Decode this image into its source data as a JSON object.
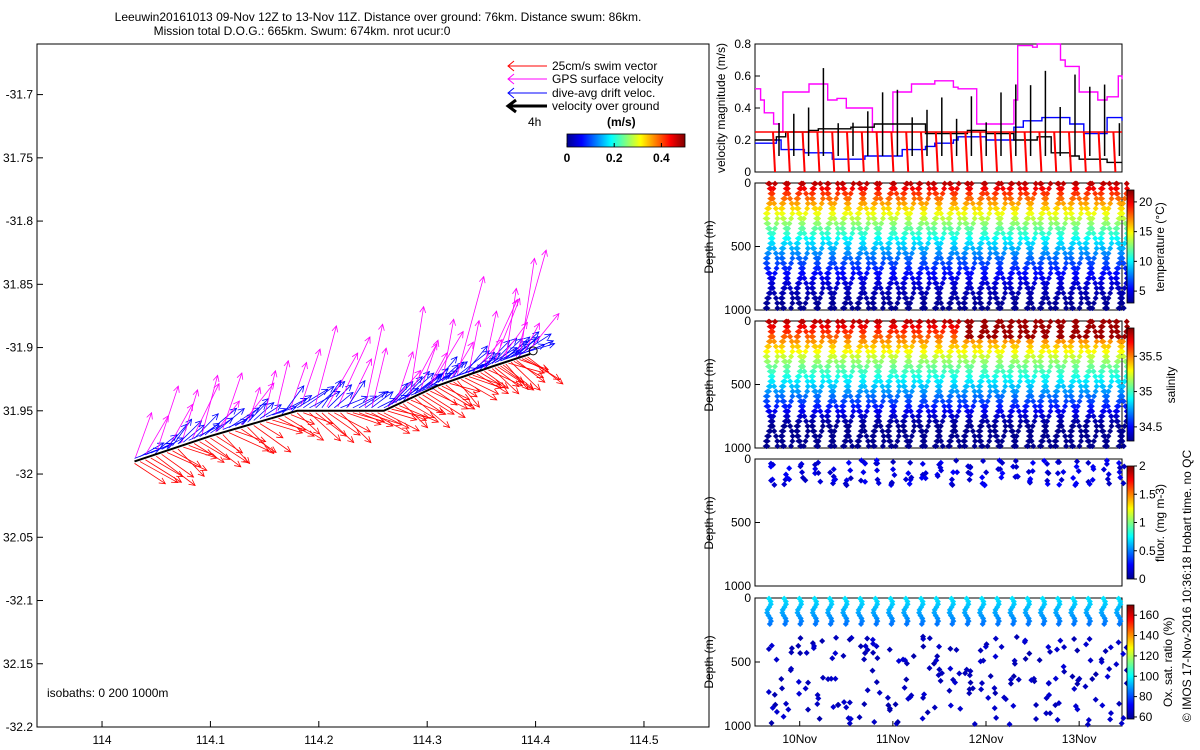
{
  "title_line1": "Leeuwin20161013 09-Nov 12Z to 13-Nov 11Z. Distance over ground: 76km. Distance swum: 86km.",
  "title_line2": "Mission total D.O.G.: 665km. Swum: 674km. nrot ucur:0",
  "footer_right": "© IMOS 17-Nov-2016 10:36:18 Hobart time. no QC",
  "isobaths_note": "isobaths: 0   200  1000m",
  "colors": {
    "swim": "#ff0000",
    "gps": "#ff00ff",
    "drift": "#0000ff",
    "ground": "#000000"
  },
  "chart_data": [
    {
      "type": "scatter",
      "panel": "map",
      "xlim": [
        113.94,
        114.56
      ],
      "ylim": [
        -32.2,
        -31.66
      ],
      "xticks": [
        114,
        114.1,
        114.2,
        114.3,
        114.4,
        114.5
      ],
      "xtick_labels": [
        "114",
        "114.1",
        "114.2",
        "114.3",
        "114.4",
        "114.5"
      ],
      "yticks": [
        -31.7,
        -31.75,
        -31.8,
        -31.85,
        -31.9,
        -31.95,
        -32,
        -32.05,
        -32.1,
        -32.15,
        -32.2
      ],
      "ytick_labels": [
        "-31.7",
        "31.75",
        "-31.8",
        "31.85",
        "-31.9",
        "31.95",
        "-32",
        "32.05",
        "-32.1",
        "32.15",
        "-32.2"
      ],
      "legend": [
        {
          "label": "25cm/s swim vector",
          "color": "#ff0000"
        },
        {
          "label": "GPS surface velocity",
          "color": "#ff00ff"
        },
        {
          "label": "dive-avg drift veloc.",
          "color": "#0000ff"
        },
        {
          "label": "velocity over ground",
          "color": "#000000"
        }
      ],
      "legend_note": "4h",
      "colorbar": {
        "label": "(m/s)",
        "range": [
          0,
          0.5
        ],
        "ticks": [
          0,
          0.2,
          0.4
        ],
        "tick_labels": [
          "0",
          "0.2",
          "0.4"
        ]
      },
      "track": [
        [
          114.03,
          -31.99
        ],
        [
          114.1,
          -31.97
        ],
        [
          114.18,
          -31.95
        ],
        [
          114.26,
          -31.95
        ],
        [
          114.31,
          -31.93
        ],
        [
          114.36,
          -31.915
        ],
        [
          114.395,
          -31.905
        ]
      ]
    },
    {
      "type": "line",
      "panel": "velocity",
      "ylabel": "velocity magnitude (m/s)",
      "ylim": [
        0,
        0.8
      ],
      "yticks": [
        0,
        0.2,
        0.4,
        0.6,
        0.8
      ],
      "ytick_labels": [
        "0",
        "0.2",
        "0.4",
        "0.6",
        "0.8"
      ],
      "x_range_days": [
        9.52,
        13.46
      ],
      "xticks": [
        10,
        11,
        12,
        13
      ],
      "xtick_labels": [
        "10Nov",
        "11Nov",
        "12Nov",
        "13Nov"
      ],
      "series": [
        {
          "name": "GPS surface velocity",
          "color": "#ff00ff",
          "x": [
            9.52,
            9.58,
            9.62,
            9.72,
            9.78,
            9.82,
            10.0,
            10.1,
            10.3,
            10.4,
            10.5,
            10.78,
            10.95,
            11.0,
            11.2,
            11.35,
            11.45,
            11.65,
            11.7,
            11.9,
            12.15,
            12.3,
            12.34,
            12.5,
            12.55,
            12.8,
            12.85,
            12.95,
            13.0,
            13.2,
            13.3,
            13.42,
            13.46
          ],
          "values": [
            0.52,
            0.45,
            0.37,
            0.3,
            0.25,
            0.5,
            0.5,
            0.55,
            0.45,
            0.46,
            0.4,
            0.25,
            0.25,
            0.5,
            0.55,
            0.55,
            0.57,
            0.53,
            0.52,
            0.3,
            0.3,
            0.45,
            0.79,
            0.78,
            0.8,
            0.7,
            0.66,
            0.66,
            0.5,
            0.45,
            0.47,
            0.6,
            0.58
          ]
        },
        {
          "name": "dive-avg drift veloc.",
          "color": "#0000ff",
          "x": [
            9.52,
            9.75,
            9.8,
            10.0,
            10.05,
            10.3,
            10.35,
            10.6,
            10.7,
            11.0,
            11.1,
            11.35,
            11.45,
            11.65,
            11.7,
            11.9,
            12.0,
            12.3,
            12.4,
            12.6,
            12.8,
            12.9,
            13.05,
            13.2,
            13.3,
            13.46
          ],
          "values": [
            0.18,
            0.2,
            0.14,
            0.14,
            0.12,
            0.12,
            0.08,
            0.08,
            0.1,
            0.1,
            0.14,
            0.16,
            0.18,
            0.2,
            0.22,
            0.22,
            0.2,
            0.28,
            0.32,
            0.34,
            0.34,
            0.3,
            0.24,
            0.24,
            0.34,
            0.32
          ]
        },
        {
          "name": "velocity over ground",
          "color": "#000000",
          "x": [
            9.52,
            9.75,
            9.85,
            10.1,
            10.2,
            10.5,
            10.55,
            10.8,
            11.0,
            11.35,
            11.45,
            11.8,
            12.0,
            12.25,
            12.3,
            12.55,
            12.7,
            12.9,
            13.0,
            13.2,
            13.3,
            13.46
          ],
          "values": [
            0.2,
            0.22,
            0.25,
            0.26,
            0.27,
            0.27,
            0.28,
            0.3,
            0.3,
            0.24,
            0.24,
            0.26,
            0.24,
            0.24,
            0.2,
            0.22,
            0.12,
            0.1,
            0.08,
            0.08,
            0.06,
            0.06
          ]
        },
        {
          "name": "25cm/s swim vector",
          "color": "#ff0000",
          "x": [
            9.52,
            13.46
          ],
          "values": [
            0.25,
            0.25
          ]
        }
      ]
    },
    {
      "type": "scatter",
      "panel": "temperature",
      "ylabel": "Depth (m)",
      "ylim": [
        1000,
        0
      ],
      "yticks": [
        0,
        500,
        1000
      ],
      "ytick_labels": [
        "0",
        "500",
        "1000"
      ],
      "colorbar": {
        "label": "temperature (°C)",
        "range": [
          3,
          22
        ],
        "ticks": [
          5,
          10,
          15,
          20
        ],
        "tick_labels": [
          "5",
          "10",
          "15",
          "20"
        ]
      },
      "dives": 24,
      "surface_value": 21,
      "deep_value": 4
    },
    {
      "type": "scatter",
      "panel": "salinity",
      "ylabel": "Depth (m)",
      "ylim": [
        1000,
        0
      ],
      "yticks": [
        0,
        500,
        1000
      ],
      "ytick_labels": [
        "0",
        "500",
        "1000"
      ],
      "colorbar": {
        "label": "salinity",
        "range": [
          34.3,
          35.9
        ],
        "ticks": [
          34.5,
          35,
          35.5
        ],
        "tick_labels": [
          "34.5",
          "35",
          "35.5"
        ]
      },
      "dives": 24,
      "surface_value": 35.8,
      "deep_value": 34.4
    },
    {
      "type": "scatter",
      "panel": "fluorescence",
      "ylabel": "Depth (m)",
      "ylim": [
        1000,
        0
      ],
      "yticks": [
        0,
        500,
        1000
      ],
      "ytick_labels": [
        "0",
        "500",
        "1000"
      ],
      "colorbar": {
        "label": "fluor. (mg m-3)",
        "range": [
          0,
          2
        ],
        "ticks": [
          0,
          0.5,
          1,
          1.5,
          2
        ],
        "tick_labels": [
          "0",
          "0.5",
          "1",
          "1.5",
          "2"
        ]
      }
    },
    {
      "type": "scatter",
      "panel": "oxygen",
      "ylabel": "Depth (m)",
      "ylim": [
        1000,
        0
      ],
      "yticks": [
        0,
        500,
        1000
      ],
      "ytick_labels": [
        "0",
        "500",
        "1000"
      ],
      "xticks": [
        10,
        11,
        12,
        13
      ],
      "xtick_labels": [
        "10Nov",
        "11Nov",
        "12Nov",
        "13Nov"
      ],
      "colorbar": {
        "label": "Ox. sat. ratio (%)",
        "range": [
          58,
          170
        ],
        "ticks": [
          60,
          80,
          100,
          120,
          140,
          160
        ],
        "tick_labels": [
          "60",
          "80",
          "100",
          "120",
          "140",
          "160"
        ]
      }
    }
  ]
}
